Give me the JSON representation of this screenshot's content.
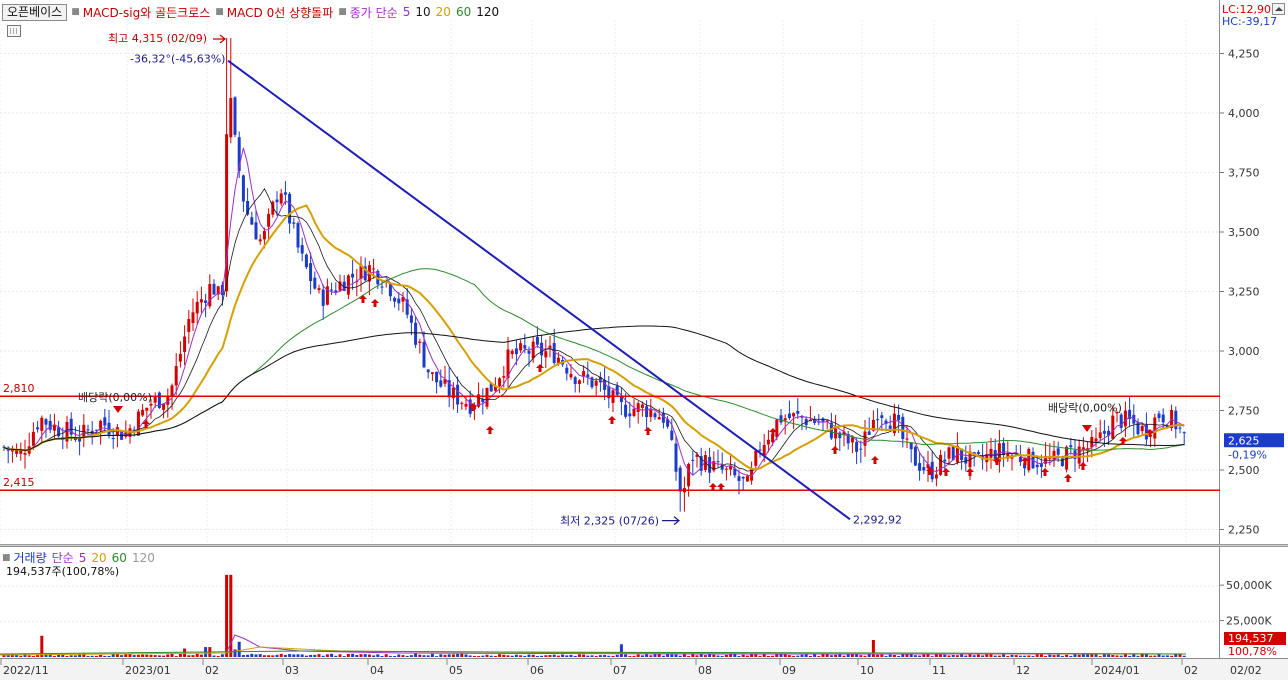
{
  "toolbar": {
    "stock_name": "오픈베이스",
    "indicators": [
      {
        "label": "MACD-sig와 골든크로스",
        "color": "#c00000"
      },
      {
        "label": "MACD 0선 상향돌파",
        "color": "#c00000"
      }
    ],
    "ma_label": "종가 단순",
    "ma_periods": [
      {
        "label": "5",
        "color": "#9b30c8"
      },
      {
        "label": "10",
        "color": "#1a1a1a"
      },
      {
        "label": "20",
        "color": "#d4a000"
      },
      {
        "label": "60",
        "color": "#2d8a2d"
      },
      {
        "label": "120",
        "color": "#111111"
      }
    ]
  },
  "header_right": {
    "lc": "LC:12,90",
    "hc": "HC:-39,17"
  },
  "annotations": {
    "high": "최고 4,315 (02/09)",
    "low": "최저 2,325 (07/26)",
    "trend_pct": "-36,32°(-45,63%)",
    "trend_end": "2,292,92",
    "dividend_left": "배당락(0,00%)",
    "dividend_right": "배당락(0,00%)",
    "resistance_label": "2,810",
    "support_label": "2,415"
  },
  "price_axis": {
    "ticks": [
      "4,250",
      "4,000",
      "3,750",
      "3,500",
      "3,250",
      "3,000",
      "2,750",
      "2,500",
      "2,250"
    ],
    "current": "2,625",
    "change": "-0,19%"
  },
  "volume_panel": {
    "label": "거래량",
    "ma_label": "단순",
    "ma_periods": [
      {
        "label": "5",
        "color": "#9b30c8"
      },
      {
        "label": "20",
        "color": "#d4a000"
      },
      {
        "label": "60",
        "color": "#2d8a2d"
      },
      {
        "label": "120",
        "color": "#999999"
      }
    ],
    "value_text": "194,537주(100,78%)",
    "ticks": [
      "50,000K",
      "25,000K"
    ],
    "current": "194,537",
    "current_pct": "100,78%"
  },
  "date_axis": {
    "labels": [
      "2022/11",
      "2023/01",
      "02",
      "03",
      "04",
      "05",
      "06",
      "07",
      "08",
      "09",
      "10",
      "11",
      "12",
      "2024/01",
      "02",
      "02/02"
    ]
  },
  "chart_data": {
    "type": "candlestick",
    "y_range": [
      2200,
      4400
    ],
    "high": {
      "value": 4315,
      "date": "02/09"
    },
    "low": {
      "value": 2325,
      "date": "07/26"
    },
    "horizontal_lines": [
      2810,
      2415
    ],
    "trendline": {
      "start": 4220,
      "end": 2292.92,
      "change_pct": -45.63
    },
    "last_close": 2625,
    "last_change_pct": -0.19,
    "last_volume": 194537,
    "moving_averages": [
      5,
      10,
      20,
      60,
      120
    ],
    "colors": {
      "up": "#d40000",
      "down": "#1a3cc8",
      "trend": "#1d1db8",
      "level": "#e00000"
    }
  }
}
